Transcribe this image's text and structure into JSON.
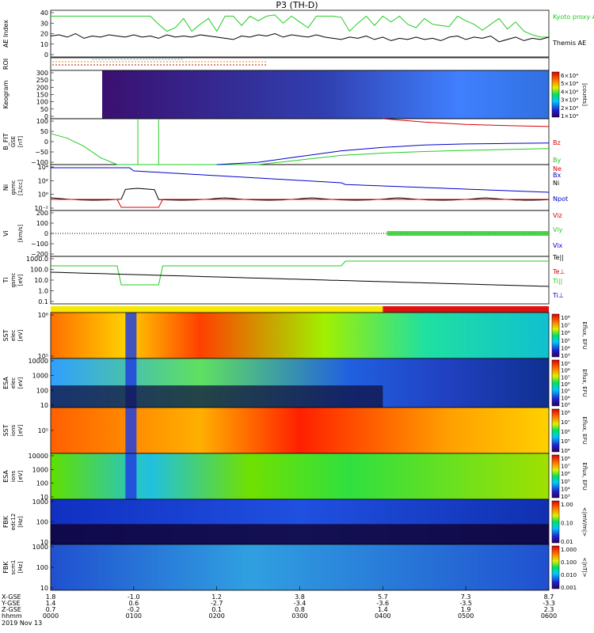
{
  "title": "P3 (TH-D)",
  "date_label": "2019 Nov 13",
  "x_axis": {
    "row_labels": [
      "X-GSE",
      "Y-GSE",
      "Z-GSE",
      "hhmm"
    ],
    "ticks": [
      {
        "x_gse": "1.8",
        "y_gse": "1.4",
        "z_gse": "0.7",
        "time": "0000"
      },
      {
        "x_gse": "-1.0",
        "y_gse": "0.6",
        "z_gse": "-0.2",
        "time": "0100"
      },
      {
        "x_gse": "1.2",
        "y_gse": "-2.7",
        "z_gse": "0.1",
        "time": "0200"
      },
      {
        "x_gse": "3.8",
        "y_gse": "-3.4",
        "z_gse": "0.8",
        "time": "0300"
      },
      {
        "x_gse": "5.7",
        "y_gse": "-3.6",
        "z_gse": "1.4",
        "time": "0400"
      },
      {
        "x_gse": "7.3",
        "y_gse": "-3.5",
        "z_gse": "1.9",
        "time": "0500"
      },
      {
        "x_gse": "8.7",
        "y_gse": "-3.3",
        "z_gse": "2.3",
        "time": "0600"
      }
    ]
  },
  "colors": {
    "green": "#22cc22",
    "red": "#dd0000",
    "blue": "#0000cc",
    "black": "#000000"
  },
  "chart_data": [
    {
      "type": "line",
      "ylabel": "AE Index",
      "yticks": [
        "40",
        "30",
        "20",
        "10",
        "0"
      ],
      "ylim": [
        0,
        40
      ],
      "series": [
        {
          "name": "Kyoto proxy AE",
          "color": "#22cc22",
          "x": [
            0,
            0.05,
            0.1,
            0.2,
            0.3,
            0.4,
            0.5,
            0.6,
            0.7,
            0.8,
            0.9,
            1.0,
            1.1,
            1.2,
            1.3,
            1.4,
            1.5,
            1.6,
            1.7,
            1.8,
            1.9,
            2.0,
            2.1,
            2.2,
            2.3,
            2.4,
            2.5,
            2.6,
            2.7,
            2.8,
            2.9,
            3.0,
            3.1,
            3.2,
            3.3,
            3.4,
            3.5,
            3.6,
            3.7,
            3.8,
            3.9,
            4.0,
            4.1,
            4.2,
            4.3,
            4.4,
            4.5,
            4.6,
            4.7,
            4.8,
            4.9,
            5.0,
            5.1,
            5.2,
            5.3,
            5.4,
            5.5,
            5.6,
            5.7,
            5.8,
            5.9,
            6.0
          ],
          "values": [
            35,
            35,
            35,
            35,
            35,
            35,
            35,
            35,
            35,
            35,
            35,
            35,
            35,
            35,
            28,
            22,
            25,
            33,
            22,
            28,
            33,
            22,
            35,
            35,
            27,
            35,
            31,
            35,
            36,
            29,
            35,
            30,
            25,
            35,
            35,
            35,
            34,
            22,
            29,
            35,
            27,
            35,
            30,
            35,
            28,
            25,
            33,
            28,
            27,
            26,
            35,
            31,
            28,
            23,
            28,
            33,
            24,
            30,
            22,
            19,
            17,
            17
          ]
        },
        {
          "name": "Themis AE",
          "color": "#000000",
          "x": [
            0,
            0.1,
            0.2,
            0.3,
            0.4,
            0.5,
            0.6,
            0.7,
            0.8,
            0.9,
            1.0,
            1.1,
            1.2,
            1.3,
            1.4,
            1.5,
            1.6,
            1.7,
            1.8,
            1.9,
            2.0,
            2.1,
            2.2,
            2.3,
            2.4,
            2.5,
            2.6,
            2.7,
            2.8,
            2.9,
            3.0,
            3.1,
            3.2,
            3.3,
            3.4,
            3.5,
            3.6,
            3.7,
            3.8,
            3.9,
            4.0,
            4.1,
            4.2,
            4.3,
            4.4,
            4.5,
            4.6,
            4.7,
            4.8,
            4.9,
            5.0,
            5.1,
            5.2,
            5.3,
            5.4,
            5.5,
            5.6,
            5.7,
            5.8,
            5.9,
            6.0
          ],
          "values": [
            18,
            19,
            17,
            20,
            16,
            18,
            17,
            19,
            18,
            17,
            19,
            17,
            18,
            16,
            19,
            17,
            18,
            17,
            19,
            18,
            17,
            16,
            15,
            18,
            17,
            19,
            18,
            20,
            17,
            19,
            18,
            17,
            19,
            17,
            16,
            15,
            17,
            16,
            18,
            15,
            17,
            14,
            16,
            15,
            17,
            15,
            16,
            14,
            17,
            18,
            15,
            17,
            16,
            18,
            13,
            15,
            17,
            14,
            16,
            15,
            17
          ]
        }
      ]
    },
    {
      "type": "marker-bar",
      "ylabel": "ROI"
    },
    {
      "type": "heatmap",
      "ylabel": "Keogram",
      "yticks": [
        "300",
        "250",
        "200",
        "150",
        "100",
        "50",
        "0"
      ],
      "ylim": [
        0,
        300
      ],
      "colorbar": {
        "label": "[counts]",
        "ticks": [
          "6×10⁴",
          "5×10⁴",
          "4×10⁴",
          "3×10⁴",
          "2×10⁴",
          "1×10⁴"
        ]
      }
    },
    {
      "type": "line",
      "ylabel": "B_FIT",
      "ylabel2": "GSE",
      "ylabel3": "[nT]",
      "yticks": [
        "100",
        "50",
        "0",
        "−50",
        "−100"
      ],
      "ylim": [
        -100,
        100
      ],
      "series": [
        {
          "name": "Bz",
          "color": "#dd0000",
          "x": [
            4.0,
            4.5,
            5.0,
            5.5,
            6.0
          ],
          "values": [
            100,
            85,
            75,
            70,
            66
          ]
        },
        {
          "name": "By",
          "color": "#22cc22",
          "x": [
            0,
            0.2,
            0.4,
            0.6,
            0.8,
            2.0,
            2.5,
            3.0,
            3.5,
            4.0,
            4.5,
            5.0,
            5.5,
            6.0
          ],
          "values": [
            35,
            15,
            -20,
            -70,
            -100,
            -100,
            -100,
            -80,
            -60,
            -50,
            -43,
            -38,
            -34,
            -30
          ]
        },
        {
          "name": "Bx",
          "color": "#0000cc",
          "x": [
            2.0,
            2.5,
            3.0,
            3.5,
            4.0,
            4.5,
            5.0,
            5.5,
            6.0
          ],
          "values": [
            -100,
            -90,
            -65,
            -40,
            -25,
            -15,
            -10,
            -8,
            -6
          ]
        }
      ]
    },
    {
      "type": "line",
      "ylabel": "Ni",
      "ylabel2": "gsmc",
      "ylabel3": "[1/cc]",
      "yticks": [
        "10⁴",
        "10²",
        "10⁰",
        "10⁻²"
      ],
      "ylog": true,
      "ylim": [
        0.005,
        20000
      ],
      "series": [
        {
          "name": "Ne",
          "color": "#dd0000"
        },
        {
          "name": "Ni",
          "color": "#000000"
        },
        {
          "name": "Npot",
          "color": "#0000cc"
        }
      ]
    },
    {
      "type": "line",
      "ylabel": "Vi",
      "ylabel3": "[km/s]",
      "yticks": [
        "200",
        "100",
        "0",
        "−100",
        "−200"
      ],
      "ylim": [
        -200,
        200
      ],
      "series": [
        {
          "name": "Viz",
          "color": "#dd0000"
        },
        {
          "name": "Viy",
          "color": "#22cc22"
        },
        {
          "name": "Vix",
          "color": "#0000cc"
        }
      ]
    },
    {
      "type": "line",
      "ylabel": "Ti",
      "ylabel2": "gsmc",
      "ylabel3": "[eV]",
      "yticks": [
        "1000.0",
        "100.0",
        "10.0",
        "1.0",
        "0.1"
      ],
      "ylog": true,
      "ylim": [
        0.1,
        3000
      ],
      "series": [
        {
          "name": "Te||",
          "color": "#000000"
        },
        {
          "name": "Te⊥",
          "color": "#dd0000"
        },
        {
          "name": "Ti||",
          "color": "#22cc22"
        },
        {
          "name": "Ti⊥",
          "color": "#0000cc"
        }
      ]
    },
    {
      "type": "mode-bar"
    },
    {
      "type": "heatmap",
      "ylabel": "SST",
      "ylabel2": "elec",
      "ylabel3": "[eV]",
      "yticks": [
        "10⁶",
        "10⁵"
      ],
      "colorbar": {
        "label": "Eflux, EFU",
        "ticks": [
          "10⁸",
          "10⁷",
          "10⁶",
          "10⁵",
          "10⁴",
          "10³"
        ]
      }
    },
    {
      "type": "heatmap",
      "ylabel": "ESA",
      "ylabel2": "elec",
      "ylabel3": "[eV]",
      "yticks": [
        "10000",
        "1000",
        "100",
        "10"
      ],
      "colorbar": {
        "label": "Eflux, EFU",
        "ticks": [
          "10⁹",
          "10⁸",
          "10⁷",
          "10⁶",
          "10⁵",
          "10⁴",
          "10³"
        ]
      }
    },
    {
      "type": "heatmap",
      "ylabel": "SST",
      "ylabel2": "ions",
      "ylabel3": "[eV]",
      "yticks": [
        "10⁵"
      ],
      "colorbar": {
        "label": "Eflux, EFU",
        "ticks": [
          "10⁸",
          "10⁷",
          "10⁶",
          "10⁵",
          "10⁴"
        ]
      }
    },
    {
      "type": "heatmap",
      "ylabel": "ESA",
      "ylabel2": "ions",
      "ylabel3": "[eV]",
      "yticks": [
        "10000",
        "1000",
        "100",
        "10"
      ],
      "colorbar": {
        "label": "Eflux, EFU",
        "ticks": [
          "10⁸",
          "10⁷",
          "10⁶",
          "10⁵",
          "10⁴",
          "10³"
        ]
      }
    },
    {
      "type": "heatmap",
      "ylabel": "FBK",
      "ylabel2": "edc12",
      "ylabel3": "[Hz]",
      "yticks": [
        "1000",
        "100",
        "10"
      ],
      "colorbar": {
        "label": "<|mV/m|>",
        "ticks": [
          "1.00",
          "0.10",
          "0.01"
        ]
      }
    },
    {
      "type": "heatmap",
      "ylabel": "FBK",
      "ylabel2": "scm1",
      "ylabel3": "[Hz]",
      "yticks": [
        "1000",
        "100",
        "10"
      ],
      "colorbar": {
        "label": "<|nT|>",
        "ticks": [
          "1.000",
          "0.100",
          "0.010",
          "0.001"
        ]
      }
    }
  ]
}
